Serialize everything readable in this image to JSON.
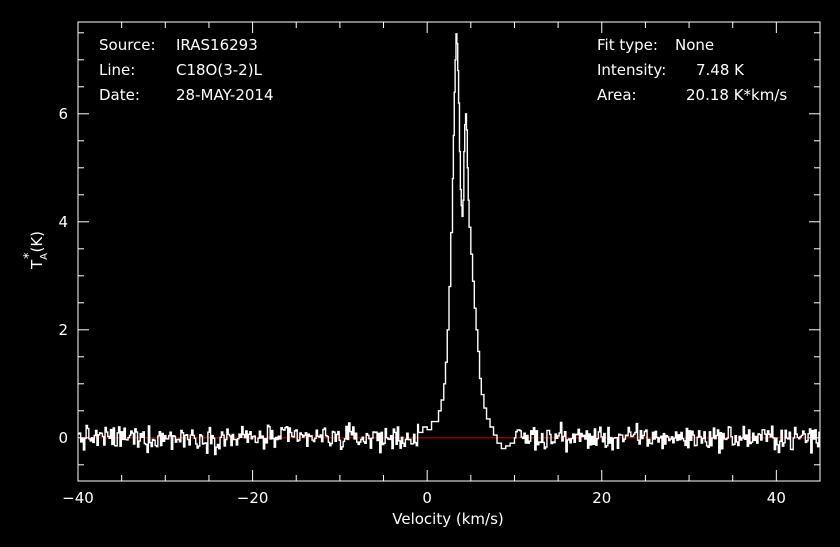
{
  "header": {
    "source_label": "Source:",
    "source_value": "IRAS16293",
    "line_label": "Line:",
    "line_value": "C18O(3-2)L",
    "date_label": "Date:",
    "date_value": "28-MAY-2014",
    "fit_label": "Fit type:",
    "fit_value": "None",
    "intensity_label": "Intensity:",
    "intensity_value": "7.48 K",
    "area_label": "Area:",
    "area_value": "20.18 K*km/s"
  },
  "colors": {
    "background": "#000000",
    "axes": "#ffffff",
    "spectrum": "#ffffff",
    "baseline": "#c00000"
  },
  "chart_data": {
    "type": "line",
    "step": true,
    "xlabel": "Velocity (km/s)",
    "ylabel_main": "T",
    "ylabel_sup": "*",
    "ylabel_sub": "A",
    "ylabel_unit": "(K)",
    "xlim": [
      -40,
      45
    ],
    "ylim": [
      -0.8,
      7.7
    ],
    "xticks": [
      -40,
      -20,
      0,
      20,
      40
    ],
    "yticks": [
      0,
      2,
      4,
      6
    ],
    "xtick_labels": [
      "−40",
      "−20",
      "0",
      "20",
      "40"
    ],
    "ytick_labels": [
      "0",
      "2",
      "4",
      "6"
    ],
    "baseline_y": 0,
    "grid": false,
    "series": [
      {
        "x": [
          -1.0,
          -0.5,
          0.0,
          0.5,
          1.0,
          1.3,
          1.6,
          1.9,
          2.1,
          2.3,
          2.5,
          2.7,
          2.9,
          3.0,
          3.1,
          3.2,
          3.3,
          3.4,
          3.5,
          3.6,
          3.7,
          3.8,
          3.9,
          4.0,
          4.1,
          4.2,
          4.3,
          4.4,
          4.5,
          4.6,
          4.7,
          4.8,
          5.0,
          5.2,
          5.4,
          5.6,
          5.8,
          6.0,
          6.2,
          6.5,
          6.8,
          7.2,
          7.6,
          8.0,
          8.5,
          9.0,
          9.5,
          10.0
        ],
        "y": [
          0.1,
          0.2,
          0.15,
          0.3,
          0.3,
          0.5,
          0.7,
          1.0,
          1.4,
          2.0,
          2.8,
          3.8,
          4.8,
          5.6,
          6.4,
          7.0,
          7.48,
          7.3,
          6.8,
          6.2,
          5.3,
          4.6,
          4.3,
          4.1,
          4.4,
          5.3,
          5.8,
          6.0,
          5.7,
          5.0,
          4.4,
          3.9,
          3.4,
          2.9,
          2.4,
          2.0,
          1.6,
          1.1,
          0.8,
          0.55,
          0.35,
          0.2,
          0.05,
          -0.1,
          -0.2,
          -0.15,
          -0.1,
          0.0
        ]
      }
    ]
  }
}
